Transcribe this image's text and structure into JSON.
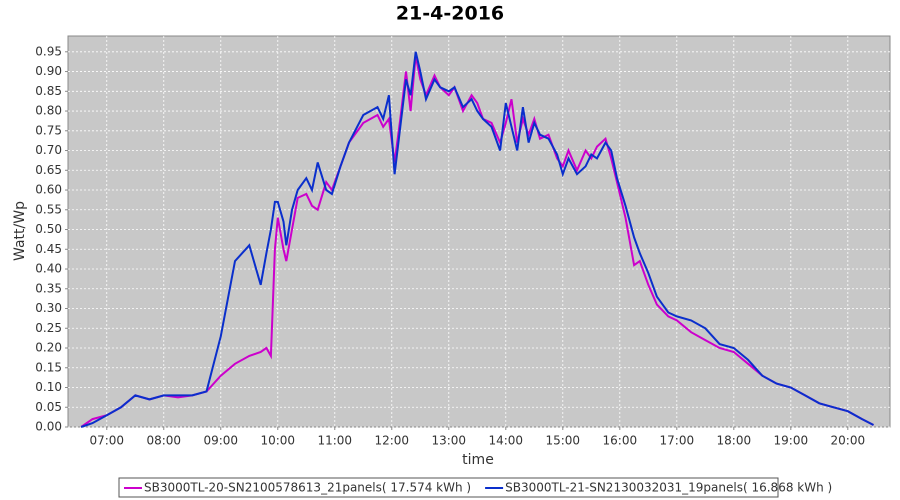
{
  "chart_data": {
    "type": "line",
    "title": "21-4-2016",
    "x_label": "time",
    "y_label": "Watt/Wp",
    "x": [
      6.55,
      6.75,
      7.0,
      7.25,
      7.5,
      7.75,
      8.0,
      8.25,
      8.5,
      8.75,
      9.0,
      9.25,
      9.5,
      9.7,
      9.8,
      9.88,
      9.95,
      10.0,
      10.1,
      10.15,
      10.25,
      10.35,
      10.5,
      10.6,
      10.7,
      10.85,
      10.95,
      11.1,
      11.25,
      11.5,
      11.75,
      11.85,
      11.95,
      12.05,
      12.15,
      12.25,
      12.33,
      12.42,
      12.5,
      12.6,
      12.75,
      12.85,
      13.0,
      13.1,
      13.25,
      13.4,
      13.5,
      13.6,
      13.75,
      13.9,
      14.0,
      14.1,
      14.2,
      14.3,
      14.4,
      14.5,
      14.6,
      14.75,
      14.9,
      15.0,
      15.1,
      15.25,
      15.4,
      15.5,
      15.6,
      15.75,
      15.85,
      15.95,
      16.1,
      16.25,
      16.35,
      16.5,
      16.65,
      16.85,
      17.0,
      17.25,
      17.5,
      17.75,
      18.0,
      18.25,
      18.5,
      18.75,
      19.0,
      19.25,
      19.5,
      19.75,
      20.0,
      20.25,
      20.45
    ],
    "series": [
      {
        "name": "SB3000TL-20-SN2100578613_21panels( 17.574 kWh )",
        "color": "#cc00cc",
        "values": [
          0.0,
          0.02,
          0.03,
          0.05,
          0.08,
          0.07,
          0.08,
          0.075,
          0.08,
          0.09,
          0.13,
          0.16,
          0.18,
          0.19,
          0.2,
          0.18,
          0.45,
          0.53,
          0.45,
          0.42,
          0.5,
          0.58,
          0.59,
          0.56,
          0.55,
          0.62,
          0.6,
          0.66,
          0.72,
          0.77,
          0.79,
          0.76,
          0.78,
          0.67,
          0.78,
          0.9,
          0.8,
          0.94,
          0.88,
          0.84,
          0.89,
          0.86,
          0.84,
          0.86,
          0.8,
          0.84,
          0.82,
          0.78,
          0.77,
          0.72,
          0.77,
          0.83,
          0.72,
          0.78,
          0.74,
          0.78,
          0.73,
          0.74,
          0.68,
          0.66,
          0.7,
          0.65,
          0.7,
          0.68,
          0.71,
          0.73,
          0.68,
          0.62,
          0.53,
          0.41,
          0.42,
          0.36,
          0.31,
          0.28,
          0.27,
          0.24,
          0.22,
          0.2,
          0.19,
          0.16,
          0.13,
          0.11,
          0.1,
          0.08,
          0.06,
          0.05,
          0.04,
          0.02,
          0.005
        ]
      },
      {
        "name": "SB3000TL-21-SN2130032031_19panels( 16.868 kWh )",
        "color": "#0a2fcc",
        "values": [
          0.0,
          0.01,
          0.03,
          0.05,
          0.08,
          0.07,
          0.08,
          0.08,
          0.08,
          0.09,
          0.23,
          0.42,
          0.46,
          0.36,
          0.44,
          0.5,
          0.57,
          0.57,
          0.52,
          0.46,
          0.55,
          0.6,
          0.63,
          0.6,
          0.67,
          0.6,
          0.59,
          0.66,
          0.72,
          0.79,
          0.81,
          0.78,
          0.84,
          0.64,
          0.76,
          0.88,
          0.84,
          0.95,
          0.9,
          0.83,
          0.88,
          0.86,
          0.85,
          0.86,
          0.81,
          0.83,
          0.8,
          0.78,
          0.76,
          0.7,
          0.82,
          0.76,
          0.7,
          0.81,
          0.72,
          0.77,
          0.74,
          0.73,
          0.69,
          0.64,
          0.68,
          0.64,
          0.66,
          0.69,
          0.68,
          0.72,
          0.7,
          0.63,
          0.56,
          0.48,
          0.44,
          0.39,
          0.33,
          0.29,
          0.28,
          0.27,
          0.25,
          0.21,
          0.2,
          0.17,
          0.13,
          0.11,
          0.1,
          0.08,
          0.06,
          0.05,
          0.04,
          0.02,
          0.005
        ]
      }
    ],
    "xlim": [
      6.32,
      20.74
    ],
    "xticks": [
      {
        "value": 7,
        "label": "07:00"
      },
      {
        "value": 8,
        "label": "08:00"
      },
      {
        "value": 9,
        "label": "09:00"
      },
      {
        "value": 10,
        "label": "10:00"
      },
      {
        "value": 11,
        "label": "11:00"
      },
      {
        "value": 12,
        "label": "12:00"
      },
      {
        "value": 13,
        "label": "13:00"
      },
      {
        "value": 14,
        "label": "14:00"
      },
      {
        "value": 15,
        "label": "15:00"
      },
      {
        "value": 16,
        "label": "16:00"
      },
      {
        "value": 17,
        "label": "17:00"
      },
      {
        "value": 18,
        "label": "18:00"
      },
      {
        "value": 19,
        "label": "19:00"
      },
      {
        "value": 20,
        "label": "20:00"
      }
    ],
    "ylim": [
      0,
      0.99
    ],
    "yticks": [
      {
        "value": 0,
        "label": "0.00"
      },
      {
        "value": 0.05,
        "label": "0.05"
      },
      {
        "value": 0.1,
        "label": "0.10"
      },
      {
        "value": 0.15,
        "label": "0.15"
      },
      {
        "value": 0.2,
        "label": "0.20"
      },
      {
        "value": 0.25,
        "label": "0.25"
      },
      {
        "value": 0.3,
        "label": "0.30"
      },
      {
        "value": 0.35,
        "label": "0.35"
      },
      {
        "value": 0.4,
        "label": "0.40"
      },
      {
        "value": 0.45,
        "label": "0.45"
      },
      {
        "value": 0.5,
        "label": "0.50"
      },
      {
        "value": 0.55,
        "label": "0.55"
      },
      {
        "value": 0.6,
        "label": "0.60"
      },
      {
        "value": 0.65,
        "label": "0.65"
      },
      {
        "value": 0.7,
        "label": "0.70"
      },
      {
        "value": 0.75,
        "label": "0.75"
      },
      {
        "value": 0.8,
        "label": "0.80"
      },
      {
        "value": 0.85,
        "label": "0.85"
      },
      {
        "value": 0.9,
        "label": "0.90"
      },
      {
        "value": 0.95,
        "label": "0.95"
      }
    ],
    "grid": true
  }
}
